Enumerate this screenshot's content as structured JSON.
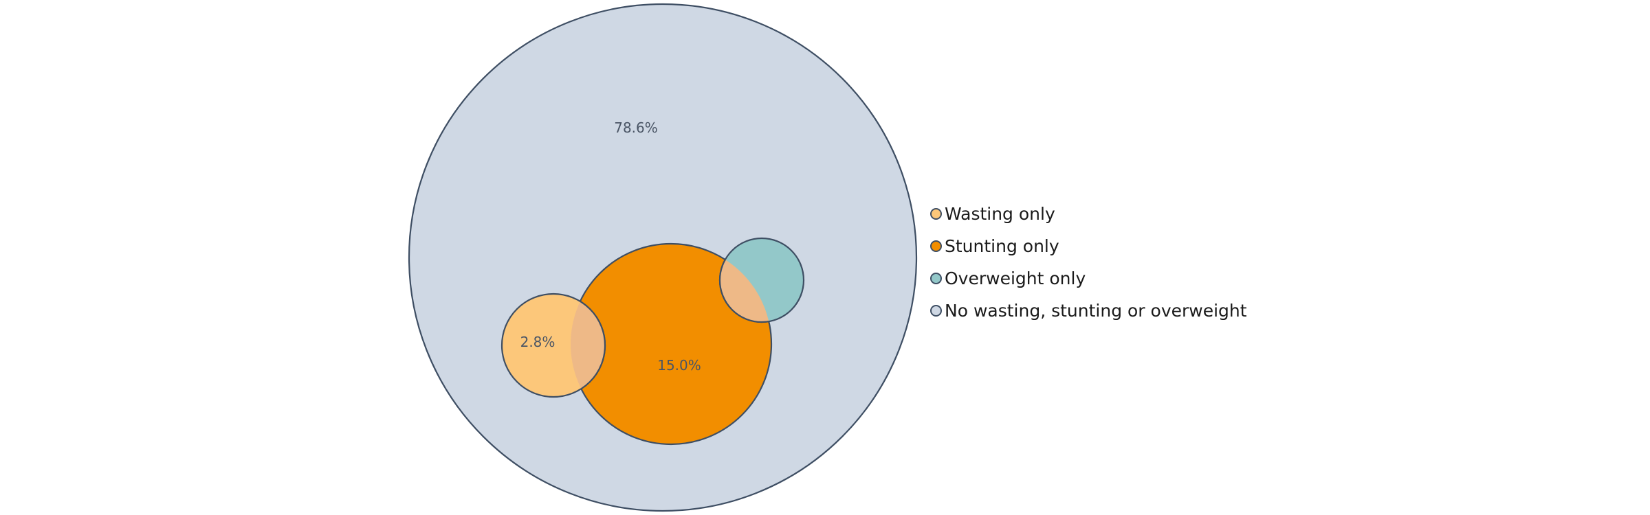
{
  "chart_data": {
    "type": "nested-circles",
    "items": [
      {
        "name": "No wasting, stunting or overweight",
        "value": 78.6,
        "label": "78.6%",
        "color": "#cfd8e4"
      },
      {
        "name": "Stunting only",
        "value": 15.0,
        "label": "15.0%",
        "color": "#f28e00"
      },
      {
        "name": "Wasting only",
        "value": 2.8,
        "label": "2.8%",
        "color": "#fcc77a"
      },
      {
        "name": "Overweight only",
        "value": null,
        "label": "",
        "color": "#93c8c9"
      }
    ],
    "legend": {
      "position": "right",
      "entries": [
        {
          "label": "Wasting only",
          "color": "#fcc77a"
        },
        {
          "label": "Stunting only",
          "color": "#f28e00"
        },
        {
          "label": "Overweight only",
          "color": "#93c8c9"
        },
        {
          "label": "No wasting, stunting or overweight",
          "color": "#cfd8e4"
        }
      ]
    },
    "stroke_color": "#3e4e63",
    "overlap_color": "#eeb987"
  }
}
